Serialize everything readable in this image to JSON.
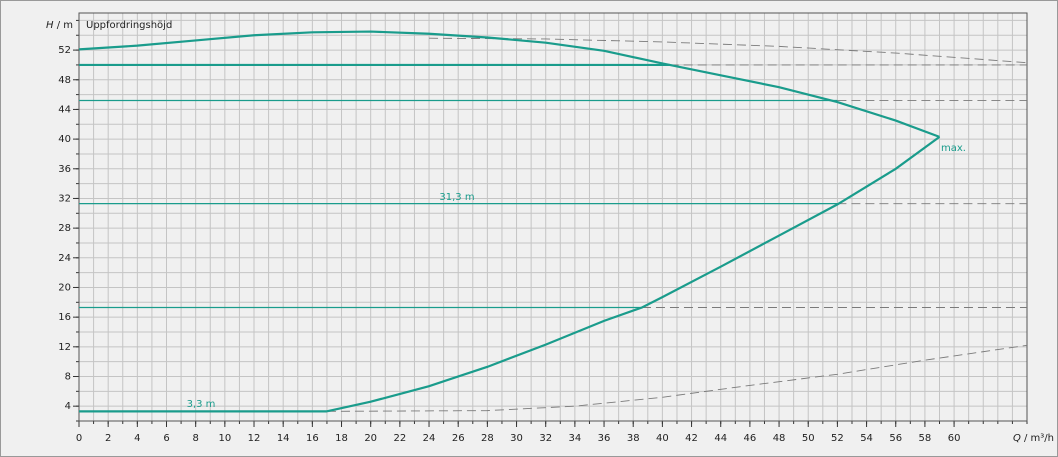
{
  "chart_data": {
    "type": "line",
    "title": "Uppfordringshöjd",
    "y_label": {
      "symbol": "H",
      "unit": " / m"
    },
    "x_label": {
      "symbol": "Q",
      "unit": " / m³/h"
    },
    "xlim": [
      0,
      65
    ],
    "ylim": [
      2,
      57
    ],
    "xticks": [
      0,
      2,
      4,
      6,
      8,
      10,
      12,
      14,
      16,
      18,
      20,
      22,
      24,
      26,
      28,
      30,
      32,
      34,
      36,
      38,
      40,
      42,
      44,
      46,
      48,
      50,
      52,
      54,
      56,
      58,
      60
    ],
    "yticks": [
      4,
      8,
      12,
      16,
      20,
      24,
      28,
      32,
      36,
      40,
      44,
      48,
      52
    ],
    "xgrid": [
      0,
      1,
      2,
      3,
      4,
      5,
      6,
      7,
      8,
      9,
      10,
      11,
      12,
      13,
      14,
      15,
      16,
      17,
      18,
      19,
      20,
      21,
      22,
      23,
      24,
      25,
      26,
      27,
      28,
      29,
      30,
      31,
      32,
      33,
      34,
      35,
      36,
      37,
      38,
      39,
      40,
      41,
      42,
      43,
      44,
      45,
      46,
      47,
      48,
      49,
      50,
      51,
      52,
      53,
      54,
      55,
      56,
      57,
      58,
      59,
      60,
      61,
      62,
      63,
      64,
      65
    ],
    "ygrid": [
      2,
      4,
      6,
      8,
      10,
      12,
      14,
      16,
      18,
      20,
      22,
      24,
      26,
      28,
      30,
      32,
      34,
      36,
      38,
      40,
      42,
      44,
      46,
      48,
      50,
      52,
      54,
      56
    ],
    "grid": true,
    "curves": [
      {
        "style": "dashed",
        "color": "#7a7a7a",
        "x": [
          24,
          32,
          40,
          48,
          56,
          65
        ],
        "values": [
          53.6,
          53.5,
          53.1,
          52.5,
          51.6,
          50.3
        ]
      },
      {
        "style": "dashed",
        "color": "#7a7a7a",
        "x": [
          40.5,
          65
        ],
        "values": [
          50,
          50
        ]
      },
      {
        "style": "dashed",
        "color": "#7a7a7a",
        "x": [
          52,
          65
        ],
        "values": [
          45.2,
          45.2
        ]
      },
      {
        "style": "dashed",
        "color": "#7a7a7a",
        "x": [
          52,
          65
        ],
        "values": [
          31.3,
          31.3
        ]
      },
      {
        "style": "dashed",
        "color": "#7a7a7a",
        "x": [
          38.6,
          65
        ],
        "values": [
          17.3,
          17.3
        ]
      },
      {
        "style": "dashed",
        "color": "#7a7a7a",
        "x": [
          17,
          28,
          34,
          40,
          46,
          52,
          58,
          65
        ],
        "values": [
          3.3,
          3.4,
          4.0,
          5.2,
          6.8,
          8.3,
          10.2,
          12.2
        ]
      },
      {
        "style": "thin",
        "color": "#1a9c8c",
        "x": [
          0,
          52
        ],
        "values": [
          45.2,
          45.2
        ]
      },
      {
        "style": "thin",
        "color": "#1a9c8c",
        "x": [
          0,
          52
        ],
        "values": [
          31.3,
          31.3
        ]
      },
      {
        "style": "thin",
        "color": "#1a9c8c",
        "x": [
          0,
          38.6
        ],
        "values": [
          17.3,
          17.3
        ]
      },
      {
        "style": "thick",
        "color": "#1a9c8c",
        "x": [
          0,
          40.5
        ],
        "values": [
          50,
          50
        ]
      },
      {
        "style": "thick",
        "color": "#1a9c8c",
        "x": [
          0,
          17
        ],
        "values": [
          3.3,
          3.3
        ]
      },
      {
        "style": "thick",
        "color": "#1a9c8c",
        "x": [
          0,
          4,
          8,
          12,
          16,
          20,
          24,
          28,
          32,
          36,
          40,
          44,
          48,
          52,
          56,
          59
        ],
        "values": [
          52.1,
          52.6,
          53.3,
          54.0,
          54.4,
          54.5,
          54.2,
          53.7,
          53.0,
          51.9,
          50.2,
          48.6,
          47.0,
          45.0,
          42.5,
          40.3
        ]
      },
      {
        "style": "thick",
        "color": "#1a9c8c",
        "x": [
          17,
          20,
          24,
          28,
          32,
          36,
          38.6,
          40,
          44,
          48,
          52,
          56,
          59
        ],
        "values": [
          3.3,
          4.6,
          6.7,
          9.3,
          12.3,
          15.5,
          17.3,
          18.7,
          22.8,
          27.0,
          31.2,
          36.0,
          40.3
        ]
      }
    ],
    "annotations": [
      "31,3 m",
      "3,3 m",
      "max."
    ],
    "annotation_color": "#1a9c8c"
  }
}
